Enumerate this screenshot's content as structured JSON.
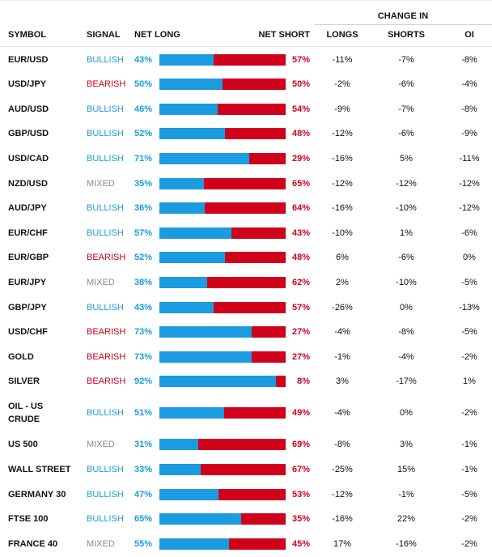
{
  "header": {
    "change_in": "CHANGE IN",
    "symbol": "SYMBOL",
    "signal": "SIGNAL",
    "net_long": "NET LONG",
    "net_short": "NET SHORT",
    "longs": "LONGS",
    "shorts": "SHORTS",
    "oi": "OI"
  },
  "colors": {
    "bullish": "#1b9be0",
    "bearish": "#d0021b",
    "mixed": "#8a8a8a",
    "long_bar": "#1b9be0",
    "short_bar": "#d0021b"
  },
  "rows": [
    {
      "symbol": "EUR/USD",
      "signal": "BULLISH",
      "net_long": "43%",
      "long_pct": 43,
      "net_short": "57%",
      "longs": "-11%",
      "shorts": "-7%",
      "oi": "-8%"
    },
    {
      "symbol": "USD/JPY",
      "signal": "BEARISH",
      "net_long": "50%",
      "long_pct": 50,
      "net_short": "50%",
      "longs": "-2%",
      "shorts": "-6%",
      "oi": "-4%"
    },
    {
      "symbol": "AUD/USD",
      "signal": "BULLISH",
      "net_long": "46%",
      "long_pct": 46,
      "net_short": "54%",
      "longs": "-9%",
      "shorts": "-7%",
      "oi": "-8%"
    },
    {
      "symbol": "GBP/USD",
      "signal": "BULLISH",
      "net_long": "52%",
      "long_pct": 52,
      "net_short": "48%",
      "longs": "-12%",
      "shorts": "-6%",
      "oi": "-9%"
    },
    {
      "symbol": "USD/CAD",
      "signal": "BULLISH",
      "net_long": "71%",
      "long_pct": 71,
      "net_short": "29%",
      "longs": "-16%",
      "shorts": "5%",
      "oi": "-11%"
    },
    {
      "symbol": "NZD/USD",
      "signal": "MIXED",
      "net_long": "35%",
      "long_pct": 35,
      "net_short": "65%",
      "longs": "-12%",
      "shorts": "-12%",
      "oi": "-12%"
    },
    {
      "symbol": "AUD/JPY",
      "signal": "BULLISH",
      "net_long": "36%",
      "long_pct": 36,
      "net_short": "64%",
      "longs": "-16%",
      "shorts": "-10%",
      "oi": "-12%"
    },
    {
      "symbol": "EUR/CHF",
      "signal": "BULLISH",
      "net_long": "57%",
      "long_pct": 57,
      "net_short": "43%",
      "longs": "-10%",
      "shorts": "1%",
      "oi": "-6%"
    },
    {
      "symbol": "EUR/GBP",
      "signal": "BEARISH",
      "net_long": "52%",
      "long_pct": 52,
      "net_short": "48%",
      "longs": "6%",
      "shorts": "-6%",
      "oi": "0%"
    },
    {
      "symbol": "EUR/JPY",
      "signal": "MIXED",
      "net_long": "38%",
      "long_pct": 38,
      "net_short": "62%",
      "longs": "2%",
      "shorts": "-10%",
      "oi": "-5%"
    },
    {
      "symbol": "GBP/JPY",
      "signal": "BULLISH",
      "net_long": "43%",
      "long_pct": 43,
      "net_short": "57%",
      "longs": "-26%",
      "shorts": "0%",
      "oi": "-13%"
    },
    {
      "symbol": "USD/CHF",
      "signal": "BEARISH",
      "net_long": "73%",
      "long_pct": 73,
      "net_short": "27%",
      "longs": "-4%",
      "shorts": "-8%",
      "oi": "-5%"
    },
    {
      "symbol": "GOLD",
      "signal": "BEARISH",
      "net_long": "73%",
      "long_pct": 73,
      "net_short": "27%",
      "longs": "-1%",
      "shorts": "-4%",
      "oi": "-2%"
    },
    {
      "symbol": "SILVER",
      "signal": "BEARISH",
      "net_long": "92%",
      "long_pct": 92,
      "net_short": "8%",
      "longs": "3%",
      "shorts": "-17%",
      "oi": "1%"
    },
    {
      "symbol": "OIL - US CRUDE",
      "signal": "BULLISH",
      "net_long": "51%",
      "long_pct": 51,
      "net_short": "49%",
      "longs": "-4%",
      "shorts": "0%",
      "oi": "-2%"
    },
    {
      "symbol": "US 500",
      "signal": "MIXED",
      "net_long": "31%",
      "long_pct": 31,
      "net_short": "69%",
      "longs": "-8%",
      "shorts": "3%",
      "oi": "-1%"
    },
    {
      "symbol": "WALL STREET",
      "signal": "BULLISH",
      "net_long": "33%",
      "long_pct": 33,
      "net_short": "67%",
      "longs": "-25%",
      "shorts": "15%",
      "oi": "-1%"
    },
    {
      "symbol": "GERMANY 30",
      "signal": "BULLISH",
      "net_long": "47%",
      "long_pct": 47,
      "net_short": "53%",
      "longs": "-12%",
      "shorts": "-1%",
      "oi": "-5%"
    },
    {
      "symbol": "FTSE 100",
      "signal": "BULLISH",
      "net_long": "65%",
      "long_pct": 65,
      "net_short": "35%",
      "longs": "-16%",
      "shorts": "22%",
      "oi": "-2%"
    },
    {
      "symbol": "FRANCE 40",
      "signal": "MIXED",
      "net_long": "55%",
      "long_pct": 55,
      "net_short": "45%",
      "longs": "17%",
      "shorts": "-16%",
      "oi": "-2%"
    }
  ]
}
